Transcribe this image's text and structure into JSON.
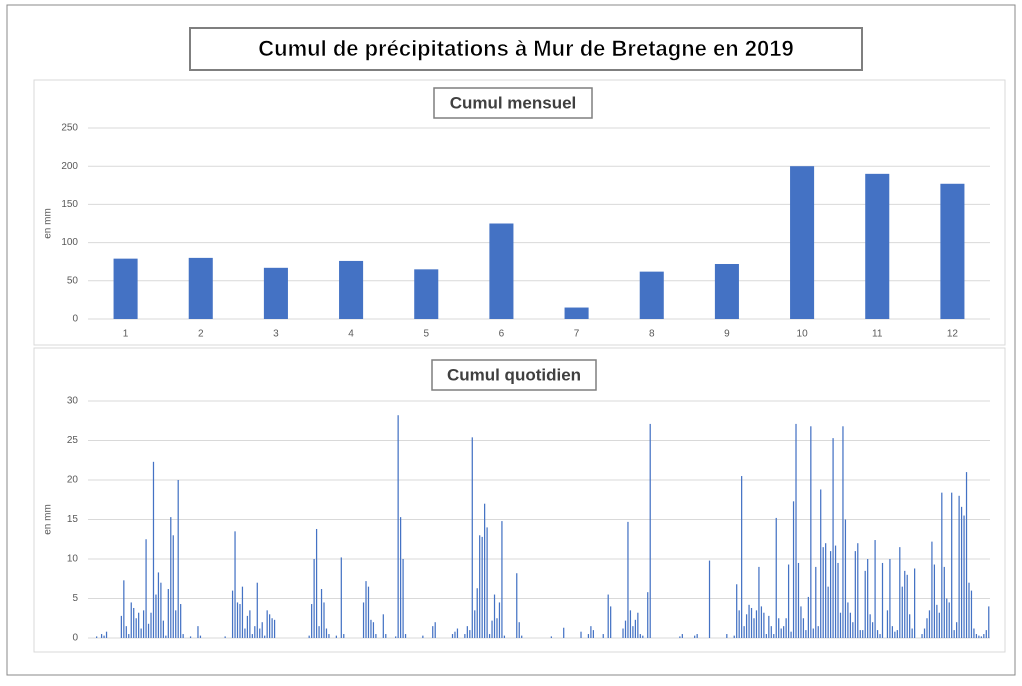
{
  "title": "Cumul de précipitations à Mur de Bretagne en 2019",
  "chart_data": [
    {
      "type": "bar",
      "title": "Cumul mensuel",
      "y_label": "en mm",
      "categories": [
        "1",
        "2",
        "3",
        "4",
        "5",
        "6",
        "7",
        "8",
        "9",
        "10",
        "11",
        "12"
      ],
      "values": [
        79,
        80,
        67,
        76,
        65,
        125,
        15,
        62,
        72,
        200,
        190,
        177
      ],
      "color": "#4472c4",
      "ylim": [
        0,
        250
      ],
      "yticks": [
        0,
        50,
        100,
        150,
        200,
        250
      ],
      "grid": true
    },
    {
      "type": "bar",
      "title": "Cumul quotidien",
      "y_label": "en mm",
      "values": [
        0,
        0,
        0,
        0.2,
        0,
        0.5,
        0.3,
        0.8,
        0,
        0,
        0,
        0,
        0,
        2.8,
        7.3,
        1.5,
        0.5,
        4.5,
        3.8,
        2.5,
        3.2,
        1.2,
        3.5,
        12.5,
        1.8,
        3.2,
        22.3,
        5.5,
        8.3,
        7,
        2.2,
        0.3,
        6.2,
        15.3,
        13,
        3.5,
        20,
        4.3,
        0.5,
        0,
        0,
        0.2,
        0,
        0,
        1.5,
        0.3,
        0,
        0,
        0,
        0,
        0,
        0,
        0,
        0,
        0,
        0.2,
        0,
        0,
        6,
        13.5,
        4.5,
        4.3,
        6.5,
        1.2,
        2.8,
        3.5,
        0.5,
        1.5,
        7,
        1.2,
        2,
        0.3,
        3.5,
        3,
        2.5,
        2.3,
        0,
        0,
        0,
        0,
        0,
        0,
        0,
        0,
        0,
        0,
        0,
        0,
        0,
        0.3,
        4.3,
        10,
        13.8,
        1.5,
        6.2,
        4.5,
        1.2,
        0.5,
        0,
        0,
        0.3,
        0,
        10.2,
        0.5,
        0,
        0,
        0,
        0,
        0,
        0,
        0,
        4.5,
        7.2,
        6.5,
        2.3,
        2,
        0.5,
        0,
        0,
        3,
        0.5,
        0,
        0,
        0,
        0.2,
        28.2,
        15.3,
        10,
        0.5,
        0,
        0,
        0,
        0,
        0,
        0,
        0.3,
        0,
        0,
        0,
        1.5,
        2,
        0,
        0,
        0,
        0,
        0,
        0,
        0.5,
        0.8,
        1.2,
        0,
        0,
        0.5,
        1.5,
        1,
        25.4,
        3.5,
        6.3,
        13,
        12.8,
        17,
        14,
        0.5,
        2.2,
        5.5,
        2.5,
        4.5,
        14.8,
        0.3,
        0,
        0,
        0,
        0,
        8.2,
        2,
        0.3,
        0,
        0,
        0,
        0,
        0,
        0,
        0,
        0,
        0,
        0,
        0,
        0.2,
        0,
        0,
        0,
        0,
        1.3,
        0,
        0,
        0,
        0,
        0,
        0,
        0.8,
        0,
        0,
        0.5,
        1.5,
        1,
        0,
        0,
        0,
        0.5,
        0,
        5.5,
        4,
        0,
        0,
        0,
        0,
        1.2,
        2.2,
        14.7,
        3.5,
        1.5,
        2.3,
        3.2,
        0.5,
        0.3,
        0,
        5.8,
        27.1,
        0,
        0,
        0,
        0,
        0,
        0,
        0,
        0,
        0,
        0,
        0,
        0.2,
        0.5,
        0,
        0,
        0,
        0,
        0.3,
        0.5,
        0,
        0,
        0,
        0,
        9.8,
        0,
        0,
        0,
        0,
        0,
        0,
        0.5,
        0,
        0,
        0.3,
        6.8,
        3.5,
        20.5,
        1.5,
        3,
        4.2,
        3.8,
        2.5,
        3.5,
        9,
        4,
        3.2,
        0.5,
        2.8,
        1.5,
        0.5,
        15.2,
        2.5,
        1.2,
        1.5,
        2.5,
        9.3,
        0.8,
        17.3,
        27.1,
        9.5,
        4,
        2.5,
        1,
        5.2,
        26.8,
        1.2,
        9,
        1.5,
        18.8,
        11.5,
        12,
        6.5,
        11,
        25.3,
        11.7,
        9.5,
        3.2,
        26.8,
        15,
        4.5,
        3.2,
        2,
        11,
        12,
        1,
        1,
        8.5,
        10,
        3,
        2,
        12.4,
        1,
        0.5,
        9.5,
        0,
        3.5,
        10,
        1.5,
        0.8,
        1,
        11.5,
        6.5,
        8.5,
        8,
        3,
        1.2,
        8.8,
        0,
        0,
        0.5,
        1.2,
        2.5,
        3.5,
        12.2,
        9.3,
        4.2,
        3.2,
        18.4,
        9,
        5,
        4.5,
        18.4,
        1,
        2,
        18,
        16.6,
        15.5,
        21,
        7,
        6,
        1.2,
        0.5,
        0.3,
        0.2,
        0.5,
        1,
        4
      ],
      "color": "#4472c4",
      "ylim": [
        0,
        30
      ],
      "yticks": [
        0,
        5,
        10,
        15,
        20,
        25,
        30
      ],
      "grid": true
    }
  ]
}
